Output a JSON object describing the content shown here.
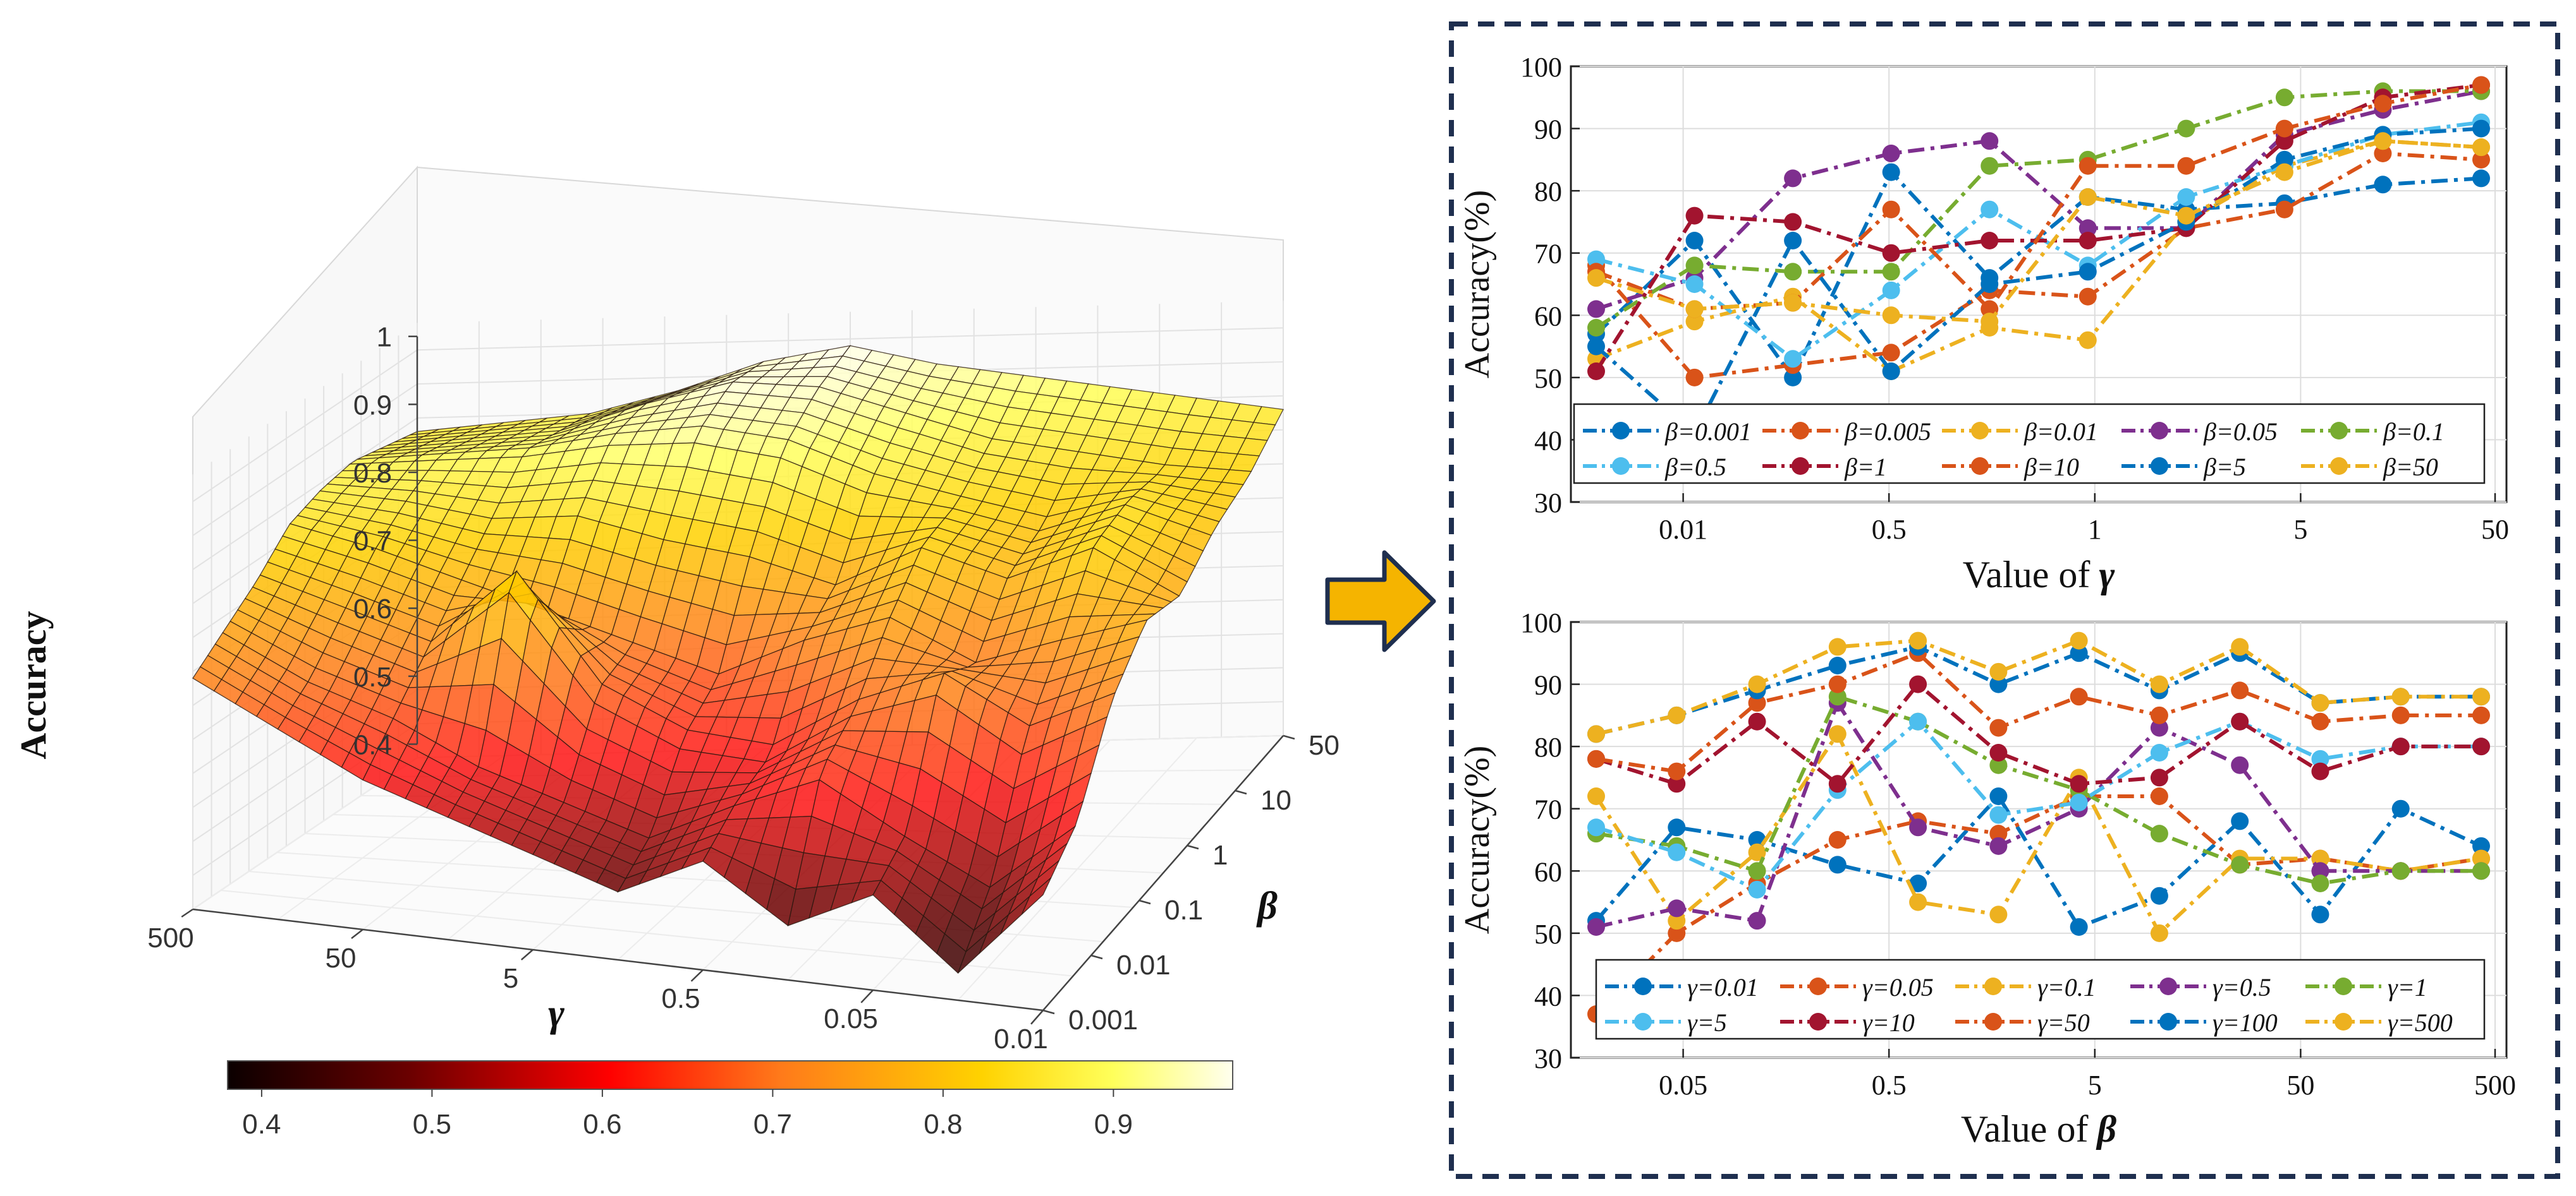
{
  "colors": {
    "frame": "#1f2f4f",
    "arrow_fill": "#f5b400",
    "arrow_stroke": "#1f2f4f",
    "grid": "#e3e3e3",
    "axis": "#333333",
    "palette": [
      "#0072bd",
      "#d95319",
      "#edb120",
      "#7e2f8e",
      "#77ac30",
      "#4dbeee",
      "#a2142f",
      "#d95319",
      "#0072bd",
      "#edb120"
    ]
  },
  "chart_data": [
    {
      "id": "surface",
      "type": "surface3d",
      "zlabel": "Accuracy",
      "xlabel": "γ",
      "ylabel": "β",
      "z_ticks": [
        "0.4",
        "0.5",
        "0.6",
        "0.7",
        "0.8",
        "0.9",
        "1"
      ],
      "gamma_ticks": [
        "500",
        "50",
        "5",
        "0.5",
        "0.05",
        "0.01"
      ],
      "beta_ticks": [
        "50",
        "10",
        "1",
        "0.1",
        "0.01",
        "0.001"
      ],
      "colorbar": {
        "ticks": [
          "0.4",
          "0.5",
          "0.6",
          "0.7",
          "0.8",
          "0.9"
        ],
        "range": [
          0.38,
          0.97
        ],
        "colormap": "hot"
      },
      "accuracy_grid": [
        [
          0.86,
          0.87,
          0.88,
          0.91,
          0.95,
          0.97,
          0.94,
          0.92,
          0.9,
          0.88,
          0.86
        ],
        [
          0.87,
          0.88,
          0.89,
          0.93,
          0.96,
          0.95,
          0.91,
          0.87,
          0.85,
          0.83,
          0.82
        ],
        [
          0.88,
          0.89,
          0.9,
          0.92,
          0.93,
          0.91,
          0.86,
          0.83,
          0.8,
          0.84,
          0.8
        ],
        [
          0.87,
          0.86,
          0.84,
          0.85,
          0.82,
          0.8,
          0.76,
          0.82,
          0.78,
          0.83,
          0.76
        ],
        [
          0.85,
          0.82,
          0.78,
          0.74,
          0.7,
          0.66,
          0.72,
          0.76,
          0.7,
          0.74,
          0.78
        ],
        [
          0.8,
          0.76,
          0.72,
          0.85,
          0.68,
          0.62,
          0.6,
          0.68,
          0.74,
          0.66,
          0.72
        ],
        [
          0.76,
          0.7,
          0.66,
          0.6,
          0.56,
          0.52,
          0.58,
          0.64,
          0.56,
          0.5,
          0.6
        ],
        [
          0.72,
          0.66,
          0.6,
          0.56,
          0.52,
          0.48,
          0.54,
          0.46,
          0.52,
          0.42,
          0.55
        ]
      ]
    },
    {
      "id": "gamma-plot",
      "type": "line",
      "xlabel": "Value of",
      "xlabel_symbol": "γ",
      "ylabel": "Accuracy(%)",
      "ylim": [
        30,
        100
      ],
      "yticks": [
        "30",
        "40",
        "50",
        "60",
        "70",
        "80",
        "90",
        "100"
      ],
      "xticks": [
        "0.01",
        "0.5",
        "1",
        "5",
        "50"
      ],
      "n_points": 10,
      "series": [
        {
          "name": "β=0.001",
          "values": [
            57,
            72,
            50,
            83,
            66,
            79,
            77,
            78,
            81,
            82
          ]
        },
        {
          "name": "β=0.005",
          "values": [
            68,
            50,
            52,
            54,
            64,
            63,
            74,
            77,
            86,
            85
          ]
        },
        {
          "name": "β=0.01",
          "values": [
            53,
            59,
            63,
            51,
            58,
            56,
            75,
            84,
            88,
            87
          ]
        },
        {
          "name": "β=0.05",
          "values": [
            61,
            66,
            82,
            86,
            88,
            74,
            74,
            89,
            93,
            96
          ]
        },
        {
          "name": "β=0.1",
          "values": [
            58,
            68,
            67,
            67,
            84,
            85,
            90,
            95,
            96,
            96
          ]
        },
        {
          "name": "β=0.5",
          "values": [
            69,
            65,
            53,
            64,
            77,
            68,
            79,
            84,
            89,
            91
          ]
        },
        {
          "name": "β=1",
          "values": [
            51,
            76,
            75,
            70,
            72,
            72,
            74,
            88,
            95,
            97
          ]
        },
        {
          "name": "β=10",
          "values": [
            67,
            61,
            62,
            77,
            61,
            84,
            84,
            90,
            94,
            97
          ]
        },
        {
          "name": "β=5",
          "values": [
            55,
            41,
            72,
            51,
            65,
            67,
            75,
            85,
            89,
            90
          ]
        },
        {
          "name": "β=50",
          "values": [
            66,
            61,
            62,
            60,
            59,
            79,
            76,
            83,
            88,
            87
          ]
        }
      ]
    },
    {
      "id": "beta-plot",
      "type": "line",
      "xlabel": "Value of",
      "xlabel_symbol": "β",
      "ylabel": "Accuracy(%)",
      "ylim": [
        30,
        100
      ],
      "yticks": [
        "30",
        "40",
        "50",
        "60",
        "70",
        "80",
        "90",
        "100"
      ],
      "xticks": [
        "0.05",
        "0.5",
        "5",
        "50",
        "500"
      ],
      "n_points": 12,
      "series": [
        {
          "name": "γ=0.01",
          "values": [
            52,
            67,
            65,
            61,
            58,
            72,
            51,
            56,
            68,
            53,
            70,
            64
          ]
        },
        {
          "name": "γ=0.05",
          "values": [
            37,
            50,
            58,
            65,
            68,
            66,
            72,
            72,
            61,
            62,
            60,
            62
          ]
        },
        {
          "name": "γ=0.1",
          "values": [
            72,
            52,
            63,
            82,
            55,
            53,
            75,
            50,
            62,
            62,
            60,
            62
          ]
        },
        {
          "name": "γ=0.5",
          "values": [
            51,
            54,
            52,
            87,
            67,
            64,
            70,
            83,
            77,
            60,
            60,
            60
          ]
        },
        {
          "name": "γ=1",
          "values": [
            66,
            64,
            60,
            88,
            84,
            77,
            73,
            66,
            61,
            58,
            60,
            60
          ]
        },
        {
          "name": "γ=5",
          "values": [
            67,
            63,
            57,
            73,
            84,
            69,
            71,
            79,
            84,
            78,
            80,
            80
          ]
        },
        {
          "name": "γ=10",
          "values": [
            78,
            74,
            84,
            74,
            90,
            79,
            74,
            75,
            84,
            76,
            80,
            80
          ]
        },
        {
          "name": "γ=50",
          "values": [
            78,
            76,
            87,
            90,
            95,
            83,
            88,
            85,
            89,
            84,
            85,
            85
          ]
        },
        {
          "name": "γ=100",
          "values": [
            82,
            85,
            89,
            93,
            96,
            90,
            95,
            89,
            95,
            87,
            88,
            88
          ]
        },
        {
          "name": "γ=500",
          "values": [
            82,
            85,
            90,
            96,
            97,
            92,
            97,
            90,
            96,
            87,
            88,
            88
          ]
        }
      ]
    }
  ]
}
